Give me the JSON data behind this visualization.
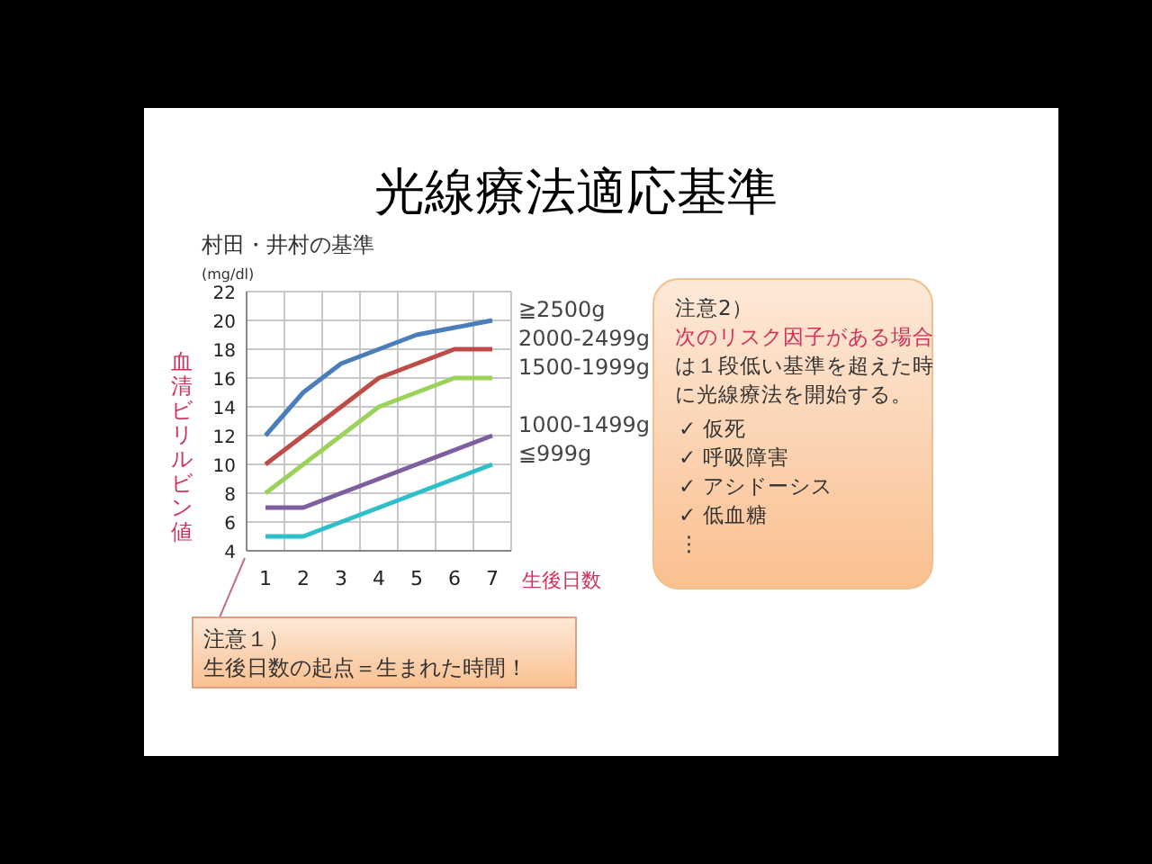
{
  "chart_data": {
    "type": "line",
    "title": "光線療法適応基準",
    "subtitle": "村田・井村の基準",
    "xlabel": "生後日数",
    "ylabel": "血清ビリルビン値",
    "categories": [
      "1",
      "2",
      "3",
      "4",
      "5",
      "6",
      "7"
    ],
    "series": [
      {
        "name": "≧2500g",
        "color": "#4a7ebb",
        "values": [
          12,
          15,
          17,
          18,
          19,
          19.5,
          20
        ]
      },
      {
        "name": "2000-2499g",
        "color": "#be4b48",
        "values": [
          10,
          12,
          14,
          16,
          17,
          18,
          18
        ]
      },
      {
        "name": "1500-1999g",
        "color": "#9bd35a",
        "values": [
          8,
          10,
          12,
          14,
          15,
          16,
          16
        ]
      },
      {
        "name": "1000-1499g",
        "color": "#7d5fa0",
        "values": [
          7,
          7,
          8,
          9,
          10,
          11,
          12
        ]
      },
      {
        "name": "≦999g",
        "color": "#2fbfc9",
        "values": [
          5,
          5,
          6,
          7,
          8,
          9,
          10
        ]
      }
    ],
    "ylim": [
      4,
      22
    ],
    "yticks": [
      4,
      6,
      8,
      10,
      12,
      14,
      16,
      18,
      20,
      22
    ],
    "grid": true,
    "marker": "none",
    "line_style": "solid",
    "annotations": [
      "(mg/dl)",
      "注意１）",
      "生後日数の起点＝生まれた時間！",
      "注意2）",
      "次のリスク因子がある場合",
      "は１段低い基準を超えた時",
      "に光線療法を開始する。",
      "✓ 仮死",
      "✓ 呼吸障害",
      "✓ アシドーシス",
      "✓ 低血糖",
      "⋮"
    ]
  }
}
